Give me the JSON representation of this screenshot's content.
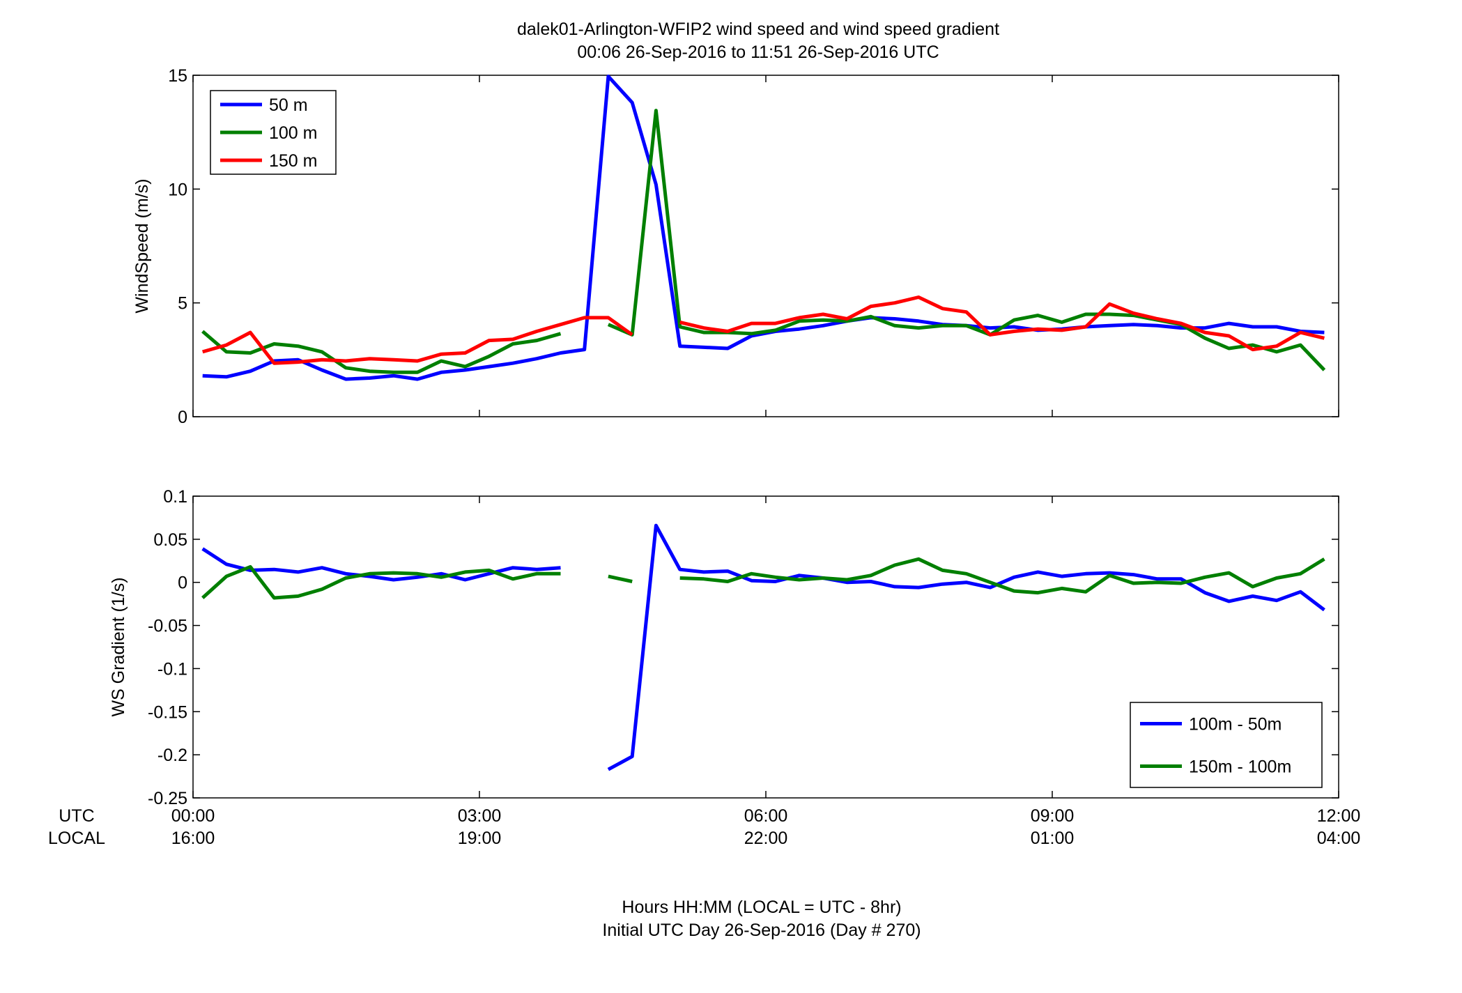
{
  "title": {
    "line1": "dalek01-Arlington-WFIP2  wind speed and wind speed gradient",
    "line2": "00:06 26-Sep-2016 to 11:51 26-Sep-2016  UTC"
  },
  "footer": {
    "line1": "Hours HH:MM  (LOCAL = UTC - 8hr)",
    "line2": "Initial UTC Day 26-Sep-2016 (Day # 270)"
  },
  "xaxis": {
    "row_label_utc": "UTC",
    "row_label_local": "LOCAL",
    "ticks_hours": [
      0,
      3,
      6,
      9,
      12
    ],
    "utc_labels": [
      "00:00",
      "03:00",
      "06:00",
      "09:00",
      "12:00"
    ],
    "local_labels": [
      "16:00",
      "19:00",
      "22:00",
      "01:00",
      "04:00"
    ]
  },
  "colors": {
    "blue": "#0000ff",
    "green": "#007f00",
    "red": "#ff0000",
    "axis": "#000000"
  },
  "chart_data": [
    {
      "type": "line",
      "ylabel": "WindSpeed (m/s)",
      "xlim": [
        0,
        12
      ],
      "ylim": [
        0,
        15
      ],
      "yticks": [
        0,
        5,
        10,
        15
      ],
      "ytick_labels": [
        "0",
        "5",
        "10",
        "15"
      ],
      "legend_placement": "top-left",
      "x": [
        0.1,
        0.35,
        0.6,
        0.85,
        1.1,
        1.35,
        1.6,
        1.85,
        2.1,
        2.35,
        2.6,
        2.85,
        3.1,
        3.35,
        3.6,
        3.85,
        4.1,
        4.35,
        4.6,
        4.85,
        5.1,
        5.35,
        5.6,
        5.85,
        6.1,
        6.35,
        6.6,
        6.85,
        7.1,
        7.35,
        7.6,
        7.85,
        8.1,
        8.35,
        8.6,
        8.85,
        9.1,
        9.35,
        9.6,
        9.85,
        10.1,
        10.35,
        10.6,
        10.85,
        11.1,
        11.35,
        11.6,
        11.85
      ],
      "series": [
        {
          "name": "50 m",
          "color": "#0000ff",
          "values": [
            1.8,
            1.75,
            2.0,
            2.45,
            2.5,
            2.05,
            1.65,
            1.7,
            1.8,
            1.65,
            1.95,
            2.05,
            2.2,
            2.35,
            2.55,
            2.8,
            2.95,
            14.95,
            13.8,
            10.2,
            3.1,
            3.05,
            3.0,
            3.55,
            3.75,
            3.85,
            4.0,
            4.2,
            4.35,
            4.3,
            4.2,
            4.05,
            4.0,
            3.9,
            3.95,
            3.8,
            3.85,
            3.95,
            4.0,
            4.05,
            4.0,
            3.9,
            3.9,
            4.1,
            3.95,
            3.95,
            3.75,
            3.7
          ]
        },
        {
          "name": "100 m",
          "color": "#007f00",
          "values": [
            3.75,
            2.85,
            2.8,
            3.2,
            3.1,
            2.85,
            2.15,
            2.0,
            1.95,
            1.95,
            2.45,
            2.2,
            2.65,
            3.2,
            3.35,
            3.65,
            null,
            4.05,
            3.6,
            13.45,
            3.95,
            3.7,
            3.7,
            3.65,
            3.8,
            4.2,
            4.25,
            4.2,
            4.4,
            4.0,
            3.9,
            4.0,
            4.0,
            3.6,
            4.25,
            4.45,
            4.15,
            4.5,
            4.5,
            4.45,
            4.25,
            4.05,
            3.45,
            3.0,
            3.15,
            2.85,
            3.15,
            2.05
          ]
        },
        {
          "name": "150 m",
          "color": "#ff0000",
          "values": [
            2.85,
            3.15,
            3.7,
            2.35,
            2.4,
            2.5,
            2.45,
            2.55,
            2.5,
            2.45,
            2.75,
            2.8,
            3.35,
            3.4,
            3.75,
            4.05,
            4.35,
            4.35,
            3.6,
            null,
            4.15,
            3.9,
            3.75,
            4.1,
            4.1,
            4.35,
            4.5,
            4.3,
            4.85,
            5.0,
            5.25,
            4.75,
            4.6,
            3.6,
            3.75,
            3.85,
            3.8,
            3.95,
            4.95,
            4.55,
            4.3,
            4.1,
            3.7,
            3.55,
            2.95,
            3.1,
            3.7,
            3.45
          ]
        }
      ]
    },
    {
      "type": "line",
      "ylabel": "WS Gradient (1/s)",
      "xlim": [
        0,
        12
      ],
      "ylim": [
        -0.25,
        0.1
      ],
      "yticks": [
        -0.25,
        -0.2,
        -0.15,
        -0.1,
        -0.05,
        0,
        0.05,
        0.1
      ],
      "ytick_labels": [
        "-0.25",
        "-0.2",
        "-0.15",
        "-0.1",
        "-0.05",
        "0",
        "0.05",
        "0.1"
      ],
      "legend_placement": "bottom-right",
      "x": [
        0.1,
        0.35,
        0.6,
        0.85,
        1.1,
        1.35,
        1.6,
        1.85,
        2.1,
        2.35,
        2.6,
        2.85,
        3.1,
        3.35,
        3.6,
        3.85,
        4.1,
        4.35,
        4.6,
        4.85,
        5.1,
        5.35,
        5.6,
        5.85,
        6.1,
        6.35,
        6.6,
        6.85,
        7.1,
        7.35,
        7.6,
        7.85,
        8.1,
        8.35,
        8.6,
        8.85,
        9.1,
        9.35,
        9.6,
        9.85,
        10.1,
        10.35,
        10.6,
        10.85,
        11.1,
        11.35,
        11.6,
        11.85
      ],
      "series": [
        {
          "name": "100m - 50m",
          "color": "#0000ff",
          "values": [
            0.039,
            0.021,
            0.014,
            0.015,
            0.012,
            0.017,
            0.01,
            0.007,
            0.003,
            0.006,
            0.01,
            0.003,
            0.01,
            0.017,
            0.015,
            0.017,
            null,
            -0.217,
            -0.202,
            0.066,
            0.015,
            0.012,
            0.013,
            0.002,
            0.001,
            0.008,
            0.005,
            0.0,
            0.001,
            -0.005,
            -0.006,
            -0.002,
            0.0,
            -0.006,
            0.006,
            0.012,
            0.007,
            0.01,
            0.011,
            0.009,
            0.004,
            0.004,
            -0.012,
            -0.022,
            -0.016,
            -0.021,
            -0.011,
            -0.032
          ]
        },
        {
          "name": "150m - 100m",
          "color": "#007f00",
          "values": [
            -0.018,
            0.007,
            0.018,
            -0.018,
            -0.016,
            -0.008,
            0.005,
            0.01,
            0.011,
            0.01,
            0.006,
            0.012,
            0.014,
            0.004,
            0.01,
            0.01,
            null,
            0.007,
            0.001,
            null,
            0.005,
            0.004,
            0.001,
            0.01,
            0.006,
            0.003,
            0.005,
            0.003,
            0.008,
            0.02,
            0.027,
            0.014,
            0.01,
            0.0,
            -0.01,
            -0.012,
            -0.007,
            -0.011,
            0.008,
            -0.001,
            0.0,
            -0.001,
            0.006,
            0.011,
            -0.005,
            0.005,
            0.01,
            0.027
          ]
        }
      ]
    }
  ]
}
